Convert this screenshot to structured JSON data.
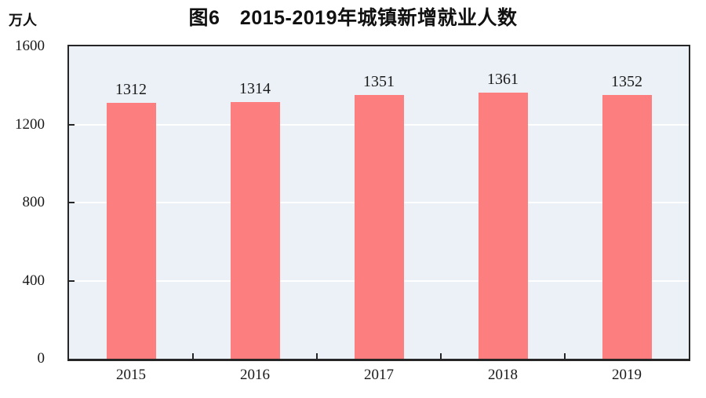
{
  "title": "图6　2015-2019年城镇新增就业人数",
  "y_axis_unit": "万人",
  "chart_data": {
    "type": "bar",
    "title": "图6　2015-2019年城镇新增就业人数",
    "categories": [
      "2015",
      "2016",
      "2017",
      "2018",
      "2019"
    ],
    "values": [
      1312,
      1314,
      1351,
      1361,
      1352
    ],
    "xlabel": "",
    "ylabel": "万人",
    "ylim": [
      0,
      1600
    ],
    "yticks": [
      0,
      400,
      800,
      1200,
      1600
    ],
    "legend": "none",
    "grid": "horizontal-white-lines",
    "colors": {
      "bar_fill": "#fc7e7e",
      "plot_background": "#ebf1f6",
      "gridline": "#ffffff",
      "axis": "#262626",
      "text": "#1a1a1a",
      "page_background": "#ffffff"
    }
  }
}
